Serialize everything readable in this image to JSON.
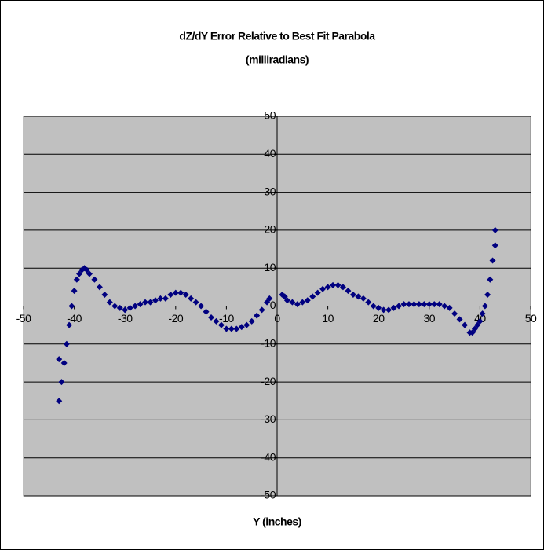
{
  "chart_data": {
    "type": "scatter",
    "title": "dZ/dY Error Relative to Best Fit Parabola",
    "subtitle": "(milliradians)",
    "x_label": "Y (inches)",
    "color": "#000080",
    "x": [
      -43,
      -43,
      -42.5,
      -42,
      -41.5,
      -41,
      -40.5,
      -40,
      -39.5,
      -39,
      -38.5,
      -38,
      -37.5,
      -37,
      -36,
      -35,
      -34,
      -33,
      -32,
      -31,
      -30,
      -29,
      -28,
      -27,
      -26,
      -25,
      -24,
      -23,
      -22,
      -21,
      -20,
      -19,
      -18,
      -17,
      -16,
      -15,
      -14,
      -13,
      -12,
      -11,
      -10,
      -9,
      -8,
      -7,
      -6,
      -5,
      -4,
      -3,
      -2,
      -1.5,
      1,
      1.5,
      2,
      3,
      4,
      5,
      6,
      7,
      8,
      9,
      10,
      11,
      12,
      13,
      14,
      15,
      16,
      17,
      18,
      19,
      20,
      21,
      22,
      23,
      24,
      25,
      26,
      27,
      28,
      29,
      30,
      31,
      32,
      33,
      34,
      35,
      36,
      37,
      38,
      38.5,
      39,
      39.5,
      40,
      40.5,
      41,
      41.5,
      42,
      42.5,
      43,
      43
    ],
    "values": [
      -25,
      -14,
      -20,
      -15,
      -10,
      -5,
      0,
      4,
      7,
      8.5,
      9.5,
      10,
      9.5,
      8.5,
      7,
      5,
      3,
      1,
      0,
      -0.5,
      -1,
      -0.5,
      0,
      0.5,
      1,
      1,
      1.5,
      2,
      2,
      3,
      3.5,
      3.5,
      3,
      2,
      1,
      0,
      -1.5,
      -3,
      -4,
      -5,
      -6,
      -6,
      -6,
      -5.5,
      -5,
      -4,
      -2.5,
      -1,
      1,
      2,
      3,
      2.5,
      1.5,
      1,
      0.5,
      1,
      1.5,
      2.5,
      3.5,
      4.5,
      5,
      5.5,
      5.5,
      5,
      4,
      3,
      2.5,
      2,
      1,
      0,
      -0.5,
      -1,
      -1,
      -0.5,
      0,
      0.5,
      0.5,
      0.5,
      0.5,
      0.5,
      0.5,
      0.5,
      0.5,
      0,
      -0.5,
      -2,
      -3.5,
      -5,
      -7,
      -7,
      -6,
      -5,
      -4,
      -2,
      0,
      3,
      7,
      12,
      16,
      20
    ],
    "xlim": [
      -50,
      50
    ],
    "xticks": [
      -50,
      -40,
      -30,
      -20,
      -10,
      0,
      10,
      20,
      30,
      40,
      50
    ],
    "ylim": [
      -50,
      50
    ],
    "yticks": [
      -50,
      -40,
      -30,
      -20,
      -10,
      0,
      10,
      20,
      30,
      40,
      50
    ],
    "grid": true
  }
}
